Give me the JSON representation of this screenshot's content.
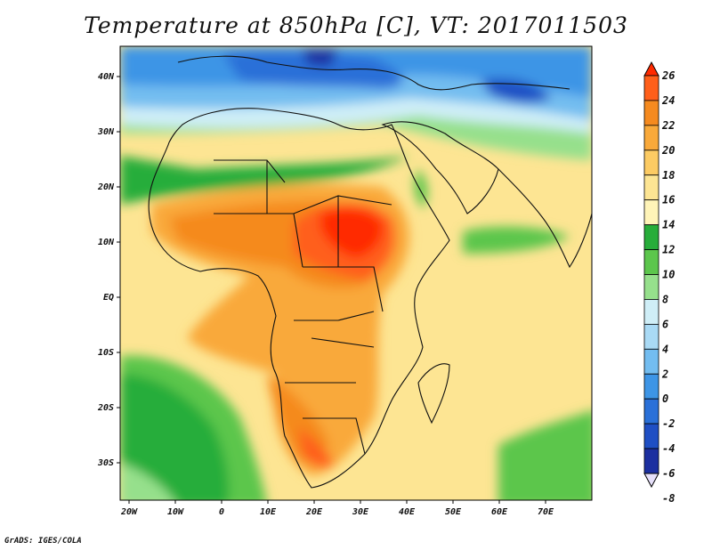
{
  "title": "Temperature at 850hPa [C], VT: 2017011503",
  "credit": "GrADS: IGES/COLA",
  "lat_ticks": [
    "40N",
    "30N",
    "20N",
    "10N",
    "EQ",
    "10S",
    "20S",
    "30S"
  ],
  "lon_ticks": [
    "20W",
    "10W",
    "0",
    "10E",
    "20E",
    "30E",
    "40E",
    "50E",
    "60E",
    "70E"
  ],
  "colorbar": {
    "labels": [
      "26",
      "24",
      "22",
      "20",
      "18",
      "16",
      "14",
      "12",
      "10",
      "8",
      "6",
      "4",
      "2",
      "0",
      "-2",
      "-4",
      "-6",
      "-8"
    ],
    "colors": [
      "#ff2a00",
      "#ff5f1a",
      "#f58a1f",
      "#f9a93a",
      "#fccb63",
      "#fde593",
      "#fff4b8",
      "#27ad3a",
      "#5cc64c",
      "#96e08c",
      "#cfeef7",
      "#a9daf5",
      "#73bdf0",
      "#3d95e6",
      "#2a70d8",
      "#1f4fc4",
      "#1c2fa0",
      "#0f166e"
    ]
  },
  "map": {
    "variable": "Temperature at 850hPa",
    "units": "C",
    "valid_time": "2017011503",
    "lon_range": [
      -20,
      80
    ],
    "lat_range": [
      -37,
      45
    ]
  }
}
